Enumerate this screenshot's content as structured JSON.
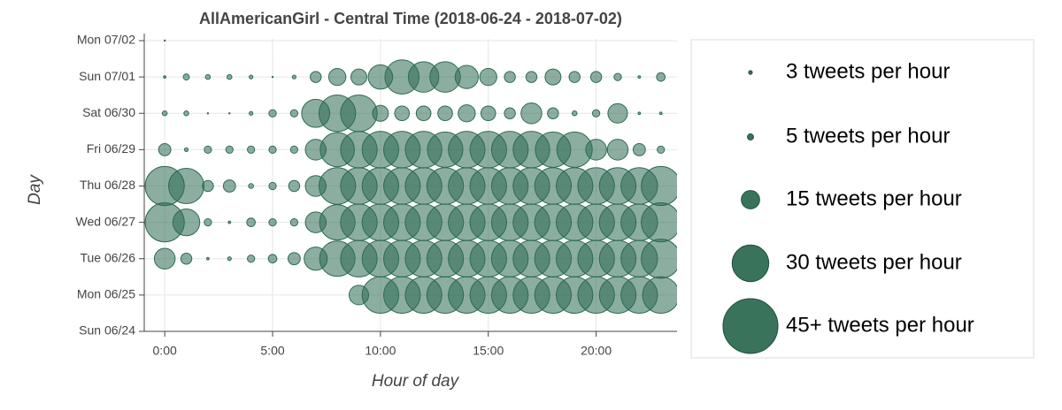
{
  "chart_data": {
    "type": "bubble",
    "title": "AllAmericanGirl - Central Time (2018-06-24 - 2018-07-02)",
    "x_label": "Hour of day",
    "y_label": "Day",
    "x": [
      0,
      1,
      2,
      3,
      4,
      5,
      6,
      7,
      8,
      9,
      10,
      11,
      12,
      13,
      14,
      15,
      16,
      17,
      18,
      19,
      20,
      21,
      22,
      23
    ],
    "categories": [
      "Sun 06/24",
      "Mon 06/25",
      "Tue 06/26",
      "Wed 06/27",
      "Thu 06/28",
      "Fri 06/29",
      "Sat 06/30",
      "Sun 07/01",
      "Mon 07/02"
    ],
    "z": [
      [
        null,
        null,
        null,
        null,
        null,
        null,
        null,
        null,
        null,
        null,
        null,
        null,
        null,
        null,
        null,
        null,
        null,
        null,
        null,
        null,
        null,
        null,
        null,
        null
      ],
      [
        null,
        null,
        null,
        null,
        null,
        null,
        null,
        null,
        null,
        16,
        30,
        30,
        30,
        30,
        30,
        30,
        30,
        30,
        30,
        30,
        30,
        30,
        30,
        30
      ],
      [
        17,
        9,
        2,
        3,
        6,
        7,
        10,
        19,
        29,
        30,
        30,
        30,
        30,
        30,
        30,
        30,
        30,
        30,
        30,
        30,
        30,
        30,
        30,
        32
      ],
      [
        32,
        22,
        6,
        2,
        7,
        6,
        6,
        17,
        29,
        30,
        30,
        30,
        30,
        30,
        30,
        30,
        30,
        30,
        30,
        30,
        30,
        30,
        30,
        32
      ],
      [
        32,
        29,
        9,
        10,
        4,
        6,
        9,
        17,
        30,
        30,
        30,
        30,
        30,
        30,
        30,
        30,
        30,
        30,
        30,
        30,
        30,
        30,
        30,
        32
      ],
      [
        10,
        3,
        6,
        6,
        6,
        6,
        6,
        17,
        28,
        30,
        30,
        30,
        30,
        29,
        30,
        30,
        30,
        30,
        29,
        29,
        17,
        17,
        10,
        6
      ],
      [
        4,
        4,
        1,
        1,
        3,
        6,
        6,
        23,
        30,
        30,
        13,
        12,
        12,
        12,
        14,
        12,
        9,
        17,
        9,
        4,
        6,
        16,
        2,
        2
      ],
      [
        2,
        5,
        4,
        4,
        3,
        1,
        3,
        9,
        14,
        13,
        20,
        28,
        25,
        25,
        19,
        14,
        9,
        9,
        13,
        9,
        9,
        6,
        2,
        7
      ],
      [
        1,
        null,
        null,
        null,
        null,
        null,
        null,
        null,
        null,
        null,
        null,
        null,
        null,
        null,
        null,
        null,
        null,
        null,
        null,
        null,
        null,
        null,
        null,
        null
      ]
    ],
    "color": "#2e6b53",
    "xlim": [
      -0.95,
      23.75
    ],
    "xticks": [
      {
        "value": 0,
        "label": "0:00"
      },
      {
        "value": 5,
        "label": "5:00"
      },
      {
        "value": 10,
        "label": "10:00"
      },
      {
        "value": 15,
        "label": "15:00"
      },
      {
        "value": 20,
        "label": "20:00"
      }
    ],
    "grid": true,
    "size_legend": [
      {
        "value": 3,
        "label": "3 tweets per hour"
      },
      {
        "value": 5,
        "label": "5 tweets per hour"
      },
      {
        "value": 15,
        "label": "15 tweets per hour"
      },
      {
        "value": 30,
        "label": "30 tweets per hour"
      },
      {
        "value": 45,
        "label": "45+ tweets per hour"
      }
    ]
  }
}
